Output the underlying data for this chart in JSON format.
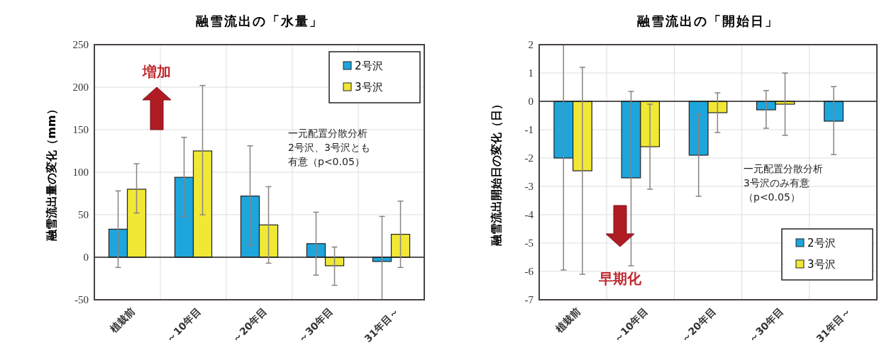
{
  "chart_data": [
    {
      "type": "bar",
      "title": "融雪流出の「水量」",
      "ylabel": "融雪流出量の変化（mm）",
      "categories": [
        "植栽前",
        "～10年目",
        "～20年目",
        "～30年目",
        "31年目～"
      ],
      "series": [
        {
          "name": "2号沢",
          "color": "#1ea5dc",
          "values": [
            33,
            94,
            72,
            16,
            -5
          ],
          "errors": [
            [
              -12,
              78
            ],
            [
              48,
              141
            ],
            [
              14,
              131
            ],
            [
              -21,
              53
            ],
            [
              -50,
              48
            ]
          ]
        },
        {
          "name": "3号沢",
          "color": "#f0e834",
          "values": [
            80,
            125,
            38,
            -10,
            27
          ],
          "errors": [
            [
              52,
              110
            ],
            [
              50,
              202
            ],
            [
              -7,
              83
            ],
            [
              -33,
              12
            ],
            [
              -12,
              66
            ]
          ]
        }
      ],
      "ylim": [
        -50,
        250
      ],
      "yticks": [
        -50,
        0,
        50,
        100,
        150,
        200,
        250
      ],
      "grid": true,
      "legend": "top right",
      "annotations": [
        "増加",
        "一元配置分散分析",
        "2号沢、3号沢とも",
        "有意（p<0.05）"
      ]
    },
    {
      "type": "bar",
      "title": "融雪流出の「開始日」",
      "ylabel": "融雪流出開始日の変化（日）",
      "categories": [
        "植栽前",
        "～10年目",
        "～20年目",
        "～30年目",
        "31年目～"
      ],
      "series": [
        {
          "name": "2号沢",
          "color": "#1ea5dc",
          "values": [
            -2.0,
            -2.7,
            -1.9,
            -0.3,
            -0.7
          ],
          "errors": [
            [
              -5.95,
              2.0
            ],
            [
              -5.8,
              0.35
            ],
            [
              -3.35,
              -0.45
            ],
            [
              -0.95,
              0.38
            ],
            [
              -1.88,
              0.52
            ]
          ]
        },
        {
          "name": "3号沢",
          "color": "#f0e834",
          "values": [
            -2.45,
            -1.6,
            -0.4,
            -0.1,
            null
          ],
          "errors": [
            [
              -6.1,
              1.2
            ],
            [
              -3.1,
              -0.1
            ],
            [
              -1.1,
              0.3
            ],
            [
              -1.2,
              1.0
            ],
            null
          ]
        }
      ],
      "ylim": [
        -7,
        2
      ],
      "yticks": [
        -7,
        -6,
        -5,
        -4,
        -3,
        -2,
        -1,
        0,
        1,
        2
      ],
      "grid": true,
      "legend": "bottom right",
      "annotations": [
        "早期化",
        "一元配置分散分析",
        "3号沢のみ有意",
        "（p<0.05）"
      ]
    }
  ]
}
